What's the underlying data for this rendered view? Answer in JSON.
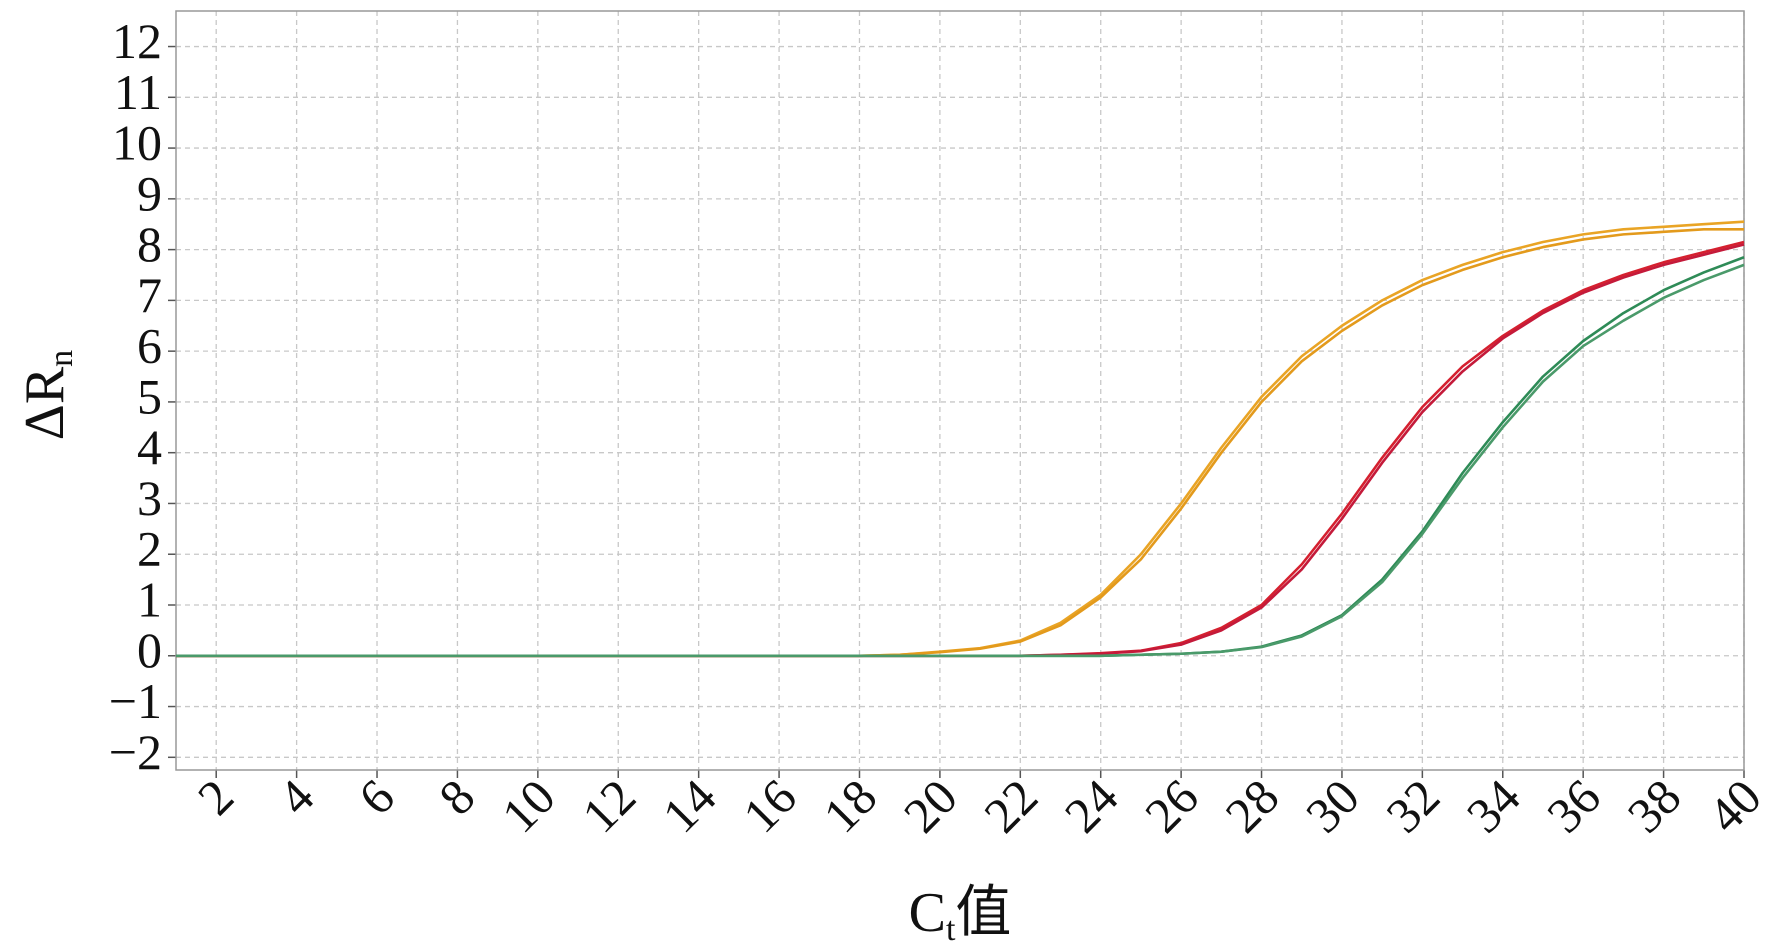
{
  "chart_data": {
    "type": "line",
    "xlabel": [
      "C",
      "t",
      "值"
    ],
    "ylabel": [
      "ΔR",
      "n"
    ],
    "x": [
      1,
      2,
      3,
      4,
      5,
      6,
      7,
      8,
      9,
      10,
      11,
      12,
      13,
      14,
      15,
      16,
      17,
      18,
      19,
      20,
      21,
      22,
      23,
      24,
      25,
      26,
      27,
      28,
      29,
      30,
      31,
      32,
      33,
      34,
      35,
      36,
      37,
      38,
      39,
      40
    ],
    "xlim": [
      1,
      40
    ],
    "xticks": [
      2,
      4,
      6,
      8,
      10,
      12,
      14,
      16,
      18,
      20,
      22,
      24,
      26,
      28,
      30,
      32,
      34,
      36,
      38,
      40
    ],
    "ylim": [
      -2.25,
      12.7
    ],
    "yticks": [
      {
        "value": -2,
        "label": "−2"
      },
      {
        "value": -1,
        "label": "−1"
      },
      0,
      1,
      2,
      3,
      4,
      5,
      6,
      7,
      8,
      9,
      10,
      11,
      12
    ],
    "grid": true,
    "series": [
      {
        "color": "#e9a425",
        "values": [
          0,
          0,
          0,
          0,
          0,
          0,
          0,
          0,
          0,
          0,
          0,
          0,
          0,
          0,
          0,
          0,
          0,
          0,
          0.02,
          0.08,
          0.15,
          0.3,
          0.65,
          1.2,
          2.0,
          3.0,
          4.1,
          5.1,
          5.9,
          6.5,
          7.0,
          7.4,
          7.7,
          7.95,
          8.15,
          8.3,
          8.4,
          8.45,
          8.5,
          8.55
        ]
      },
      {
        "color": "#e39a1c",
        "values": [
          0,
          0,
          0,
          0,
          0,
          0,
          0,
          0,
          0,
          0,
          0,
          0,
          0,
          0,
          0,
          0,
          0,
          0,
          0.02,
          0.07,
          0.14,
          0.28,
          0.6,
          1.15,
          1.9,
          2.9,
          4.0,
          5.0,
          5.8,
          6.4,
          6.9,
          7.3,
          7.6,
          7.85,
          8.05,
          8.2,
          8.3,
          8.35,
          8.4,
          8.4
        ]
      },
      {
        "color": "#d5202f",
        "values": [
          0,
          0,
          0,
          0,
          0,
          0,
          0,
          0,
          0,
          0,
          0,
          0,
          0,
          0,
          0,
          0,
          0,
          0,
          0,
          0,
          0,
          0,
          0.02,
          0.05,
          0.1,
          0.25,
          0.55,
          1.0,
          1.8,
          2.8,
          3.9,
          4.9,
          5.7,
          6.3,
          6.8,
          7.2,
          7.5,
          7.75,
          7.95,
          8.15
        ]
      },
      {
        "color": "#c41a3a",
        "values": [
          0,
          0,
          0,
          0,
          0,
          0,
          0,
          0,
          0,
          0,
          0,
          0,
          0,
          0,
          0,
          0,
          0,
          0,
          0,
          0,
          0,
          0,
          0.02,
          0.04,
          0.09,
          0.22,
          0.5,
          0.95,
          1.7,
          2.7,
          3.8,
          4.8,
          5.6,
          6.25,
          6.75,
          7.15,
          7.45,
          7.7,
          7.9,
          8.1
        ]
      },
      {
        "color": "#2e8b57",
        "values": [
          0,
          0,
          0,
          0,
          0,
          0,
          0,
          0,
          0,
          0,
          0,
          0,
          0,
          0,
          0,
          0,
          0,
          0,
          0,
          0,
          0,
          0,
          0,
          0,
          0.02,
          0.04,
          0.08,
          0.18,
          0.4,
          0.8,
          1.5,
          2.45,
          3.6,
          4.6,
          5.5,
          6.2,
          6.75,
          7.2,
          7.55,
          7.85
        ]
      },
      {
        "color": "#4a9a6a",
        "values": [
          0,
          0,
          0,
          0,
          0,
          0,
          0,
          0,
          0,
          0,
          0,
          0,
          0,
          0,
          0,
          0,
          0,
          0,
          0,
          0,
          0,
          0,
          0,
          0,
          0.02,
          0.04,
          0.08,
          0.17,
          0.38,
          0.78,
          1.45,
          2.4,
          3.5,
          4.5,
          5.4,
          6.1,
          6.6,
          7.05,
          7.4,
          7.7
        ]
      }
    ]
  }
}
